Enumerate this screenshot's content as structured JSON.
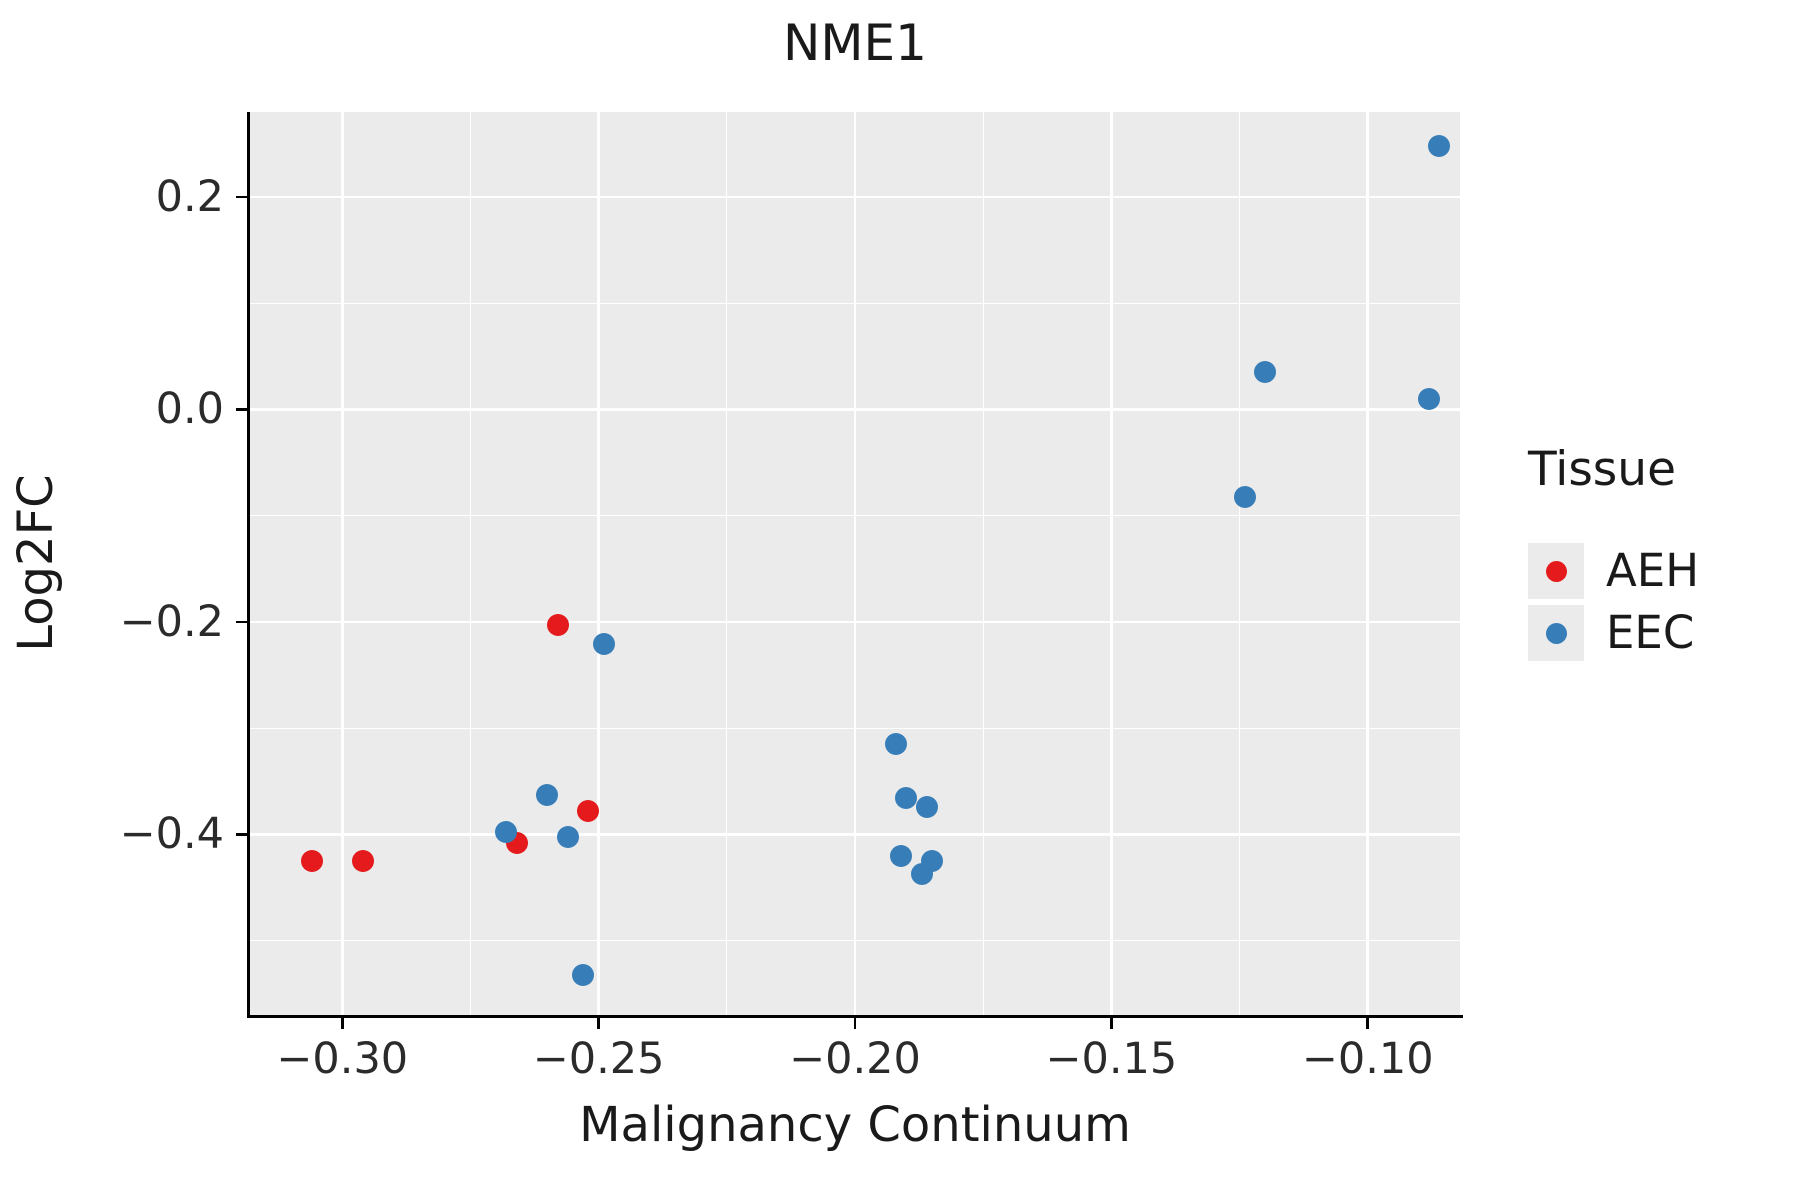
{
  "chart_data": {
    "type": "scatter",
    "title": "NME1",
    "xlabel": "Malignancy Continuum",
    "ylabel": "Log2FC",
    "legend_title": "Tissue",
    "legend_position": "right",
    "grid": true,
    "panel_background": "#EBEBEB",
    "gridline_color": "#FFFFFF",
    "xlim": [
      -0.318,
      -0.082
    ],
    "ylim": [
      -0.57,
      0.28
    ],
    "x_ticks": [
      -0.3,
      -0.25,
      -0.2,
      -0.15,
      -0.1
    ],
    "x_tick_labels": [
      "−0.30",
      "−0.25",
      "−0.20",
      "−0.15",
      "−0.10"
    ],
    "x_minor_ticks": [
      -0.275,
      -0.225,
      -0.175,
      -0.125
    ],
    "y_ticks": [
      0.2,
      0.0,
      -0.2,
      -0.4
    ],
    "y_tick_labels": [
      "0.2",
      "0.0",
      "−0.2",
      "−0.4"
    ],
    "y_minor_ticks": [
      0.1,
      -0.1,
      -0.3,
      -0.5
    ],
    "series": [
      {
        "name": "AEH",
        "color": "#E41A1C",
        "points": [
          [
            -0.306,
            -0.425
          ],
          [
            -0.296,
            -0.425
          ],
          [
            -0.258,
            -0.203
          ],
          [
            -0.266,
            -0.408
          ],
          [
            -0.252,
            -0.378
          ]
        ]
      },
      {
        "name": "EEC",
        "color": "#377EB8",
        "points": [
          [
            -0.249,
            -0.221
          ],
          [
            -0.26,
            -0.363
          ],
          [
            -0.268,
            -0.398
          ],
          [
            -0.256,
            -0.402
          ],
          [
            -0.253,
            -0.532
          ],
          [
            -0.192,
            -0.315
          ],
          [
            -0.19,
            -0.366
          ],
          [
            -0.186,
            -0.374
          ],
          [
            -0.191,
            -0.42
          ],
          [
            -0.185,
            -0.425
          ],
          [
            -0.187,
            -0.437
          ],
          [
            -0.12,
            0.035
          ],
          [
            -0.124,
            -0.082
          ],
          [
            -0.086,
            0.248
          ],
          [
            -0.088,
            0.01
          ]
        ]
      }
    ]
  }
}
